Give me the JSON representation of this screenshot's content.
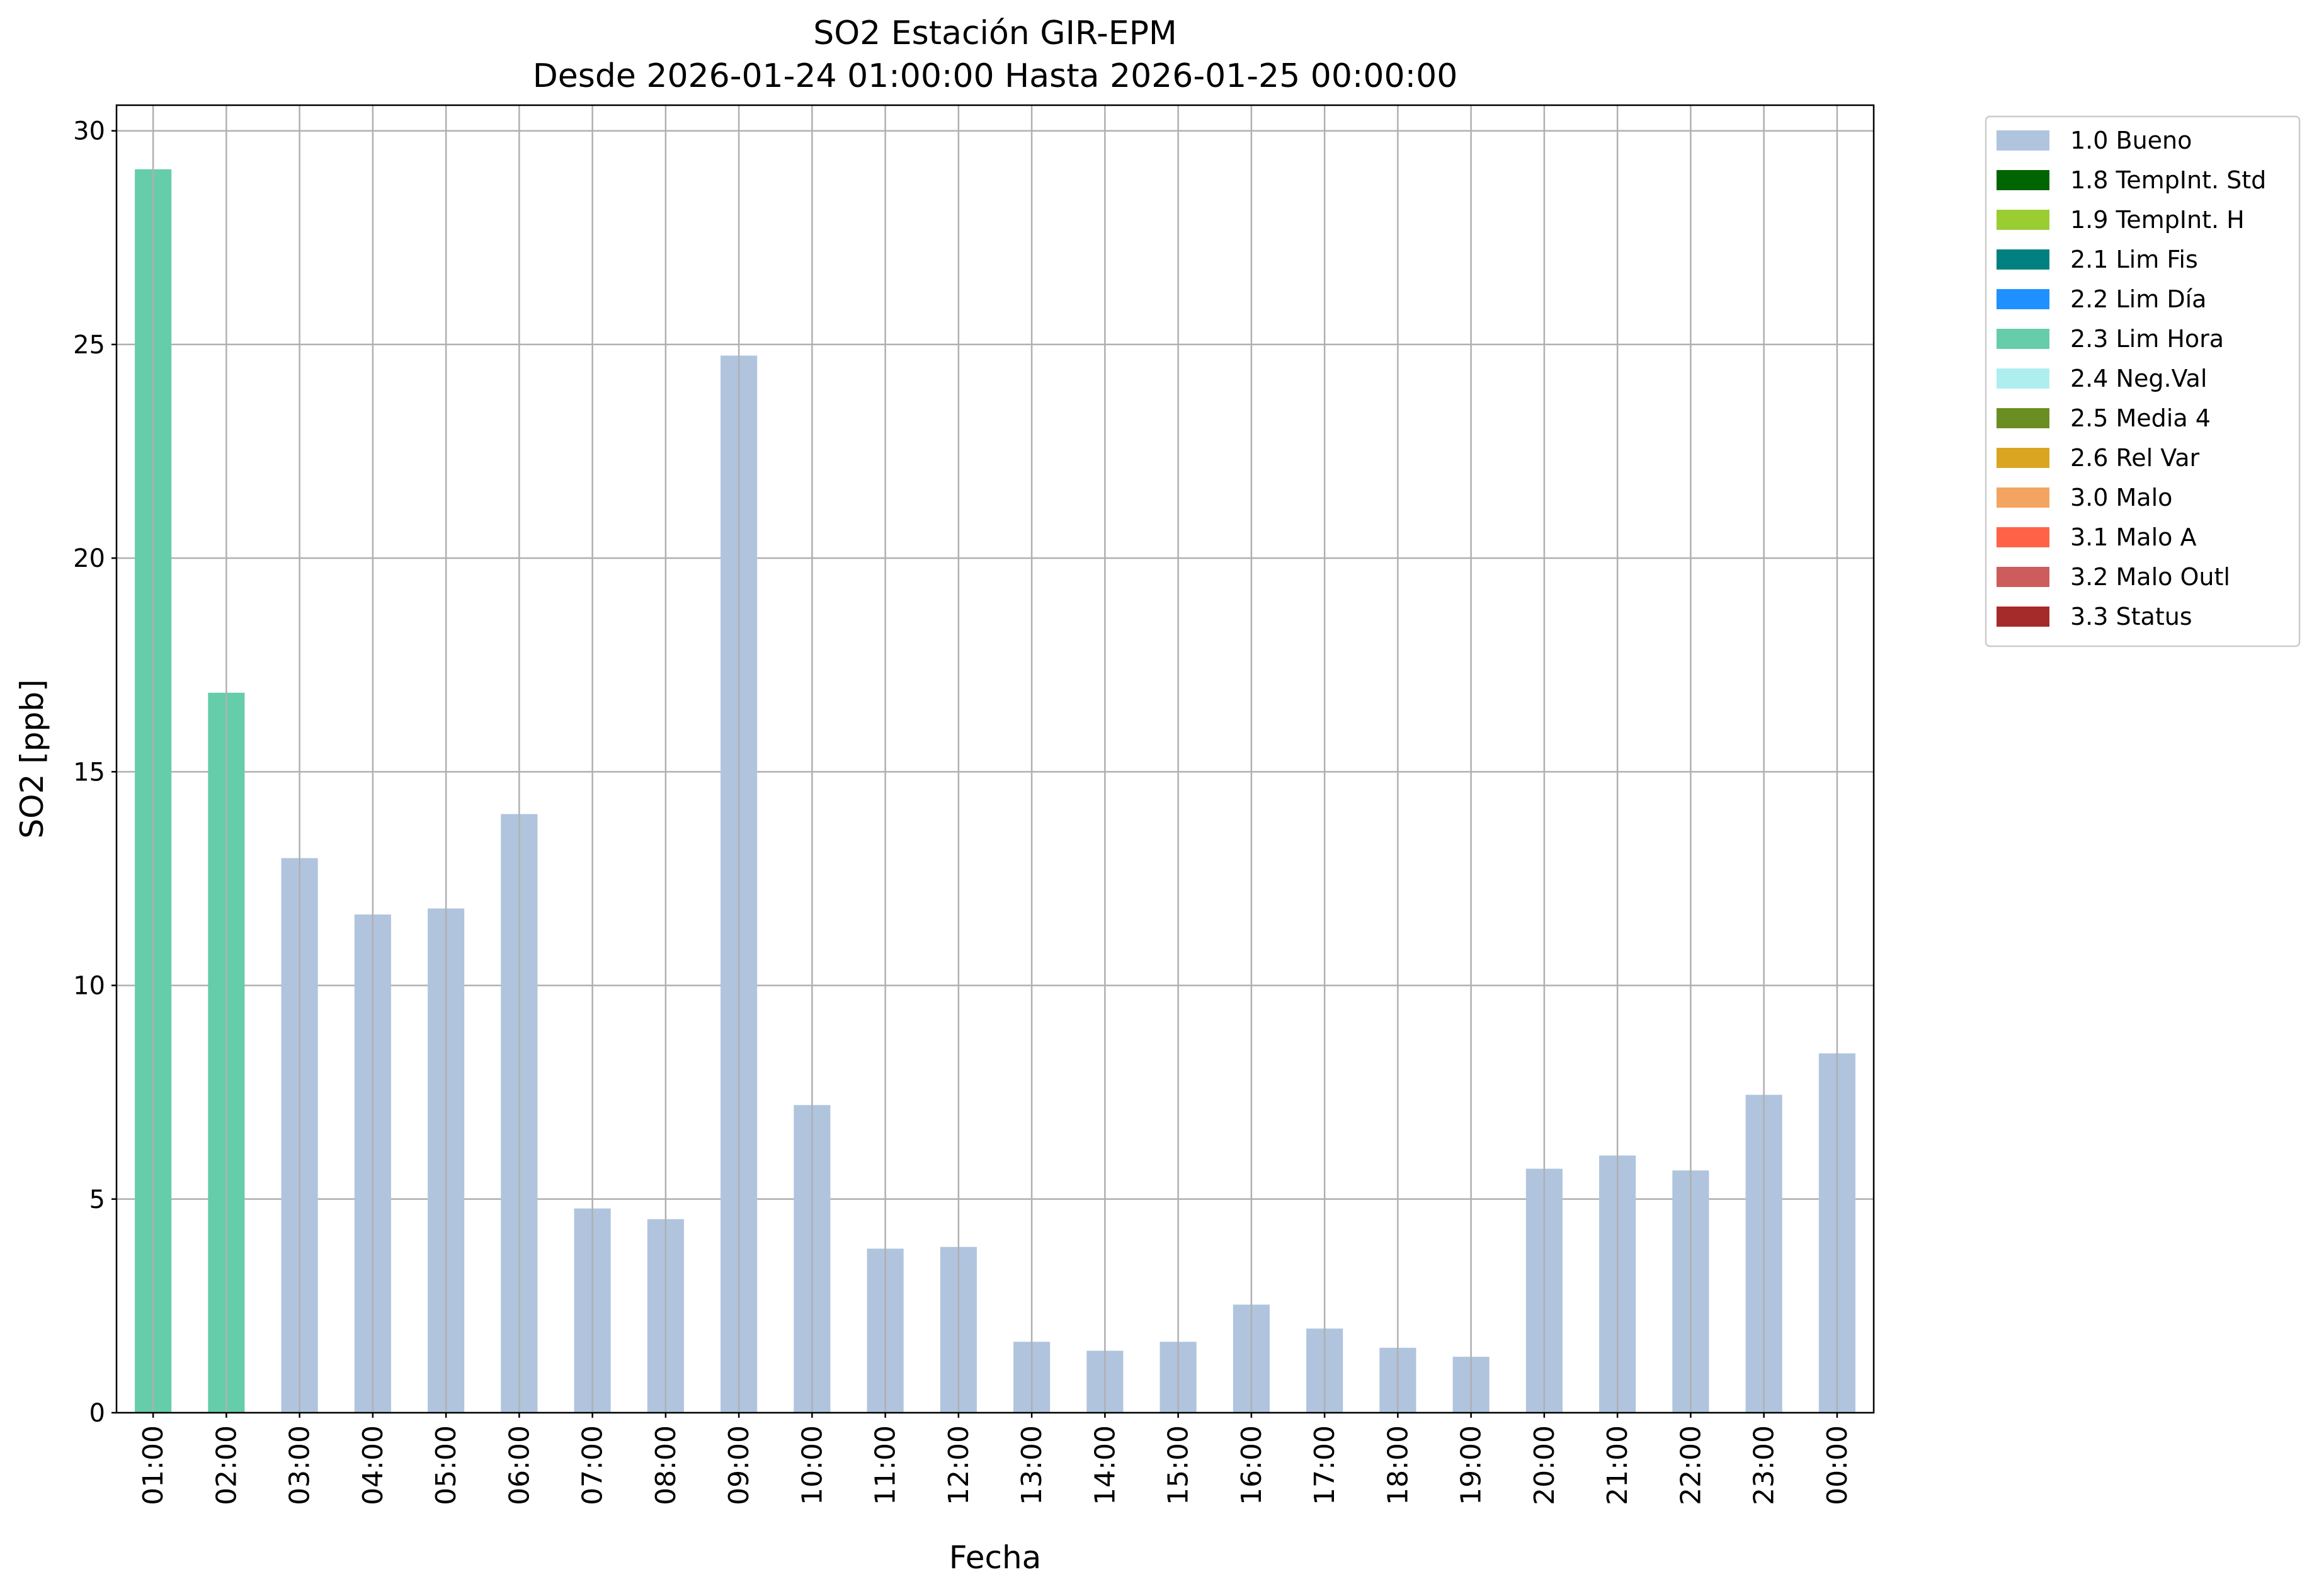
{
  "chart_data": {
    "type": "bar",
    "title": "SO2 Estación GIR-EPM",
    "subtitle": "Desde 2026-01-24 01:00:00 Hasta 2026-01-25 00:00:00",
    "xlabel": "Fecha",
    "ylabel": "SO2 [ppb]",
    "ylim": [
      0,
      30.6
    ],
    "yticks": [
      0,
      5,
      10,
      15,
      20,
      25,
      30
    ],
    "grid": true,
    "legend_placement": "outside-top-right",
    "categories": [
      "01:00",
      "02:00",
      "03:00",
      "04:00",
      "05:00",
      "06:00",
      "07:00",
      "08:00",
      "09:00",
      "10:00",
      "11:00",
      "12:00",
      "13:00",
      "14:00",
      "15:00",
      "16:00",
      "17:00",
      "18:00",
      "19:00",
      "20:00",
      "21:00",
      "22:00",
      "23:00",
      "00:00"
    ],
    "values": [
      29.1,
      16.85,
      12.98,
      11.66,
      11.8,
      14.01,
      4.78,
      4.53,
      24.74,
      7.2,
      3.84,
      3.88,
      1.66,
      1.45,
      1.66,
      2.53,
      1.97,
      1.52,
      1.31,
      5.71,
      6.02,
      5.67,
      7.44,
      8.41
    ],
    "flags": [
      "2.3 Lim Hora",
      "2.3 Lim Hora",
      "1.0 Bueno",
      "1.0 Bueno",
      "1.0 Bueno",
      "1.0 Bueno",
      "1.0 Bueno",
      "1.0 Bueno",
      "1.0 Bueno",
      "1.0 Bueno",
      "1.0 Bueno",
      "1.0 Bueno",
      "1.0 Bueno",
      "1.0 Bueno",
      "1.0 Bueno",
      "1.0 Bueno",
      "1.0 Bueno",
      "1.0 Bueno",
      "1.0 Bueno",
      "1.0 Bueno",
      "1.0 Bueno",
      "1.0 Bueno",
      "1.0 Bueno",
      "1.0 Bueno"
    ],
    "legend": [
      {
        "label": "1.0 Bueno",
        "color": "#b0c4de"
      },
      {
        "label": "1.8 TempInt. Std",
        "color": "#006400"
      },
      {
        "label": "1.9 TempInt. H",
        "color": "#9acd32"
      },
      {
        "label": "2.1 Lim Fis",
        "color": "#008080"
      },
      {
        "label": "2.2 Lim Día",
        "color": "#1e90ff"
      },
      {
        "label": "2.3 Lim Hora",
        "color": "#66cdaa"
      },
      {
        "label": "2.4 Neg.Val",
        "color": "#afeeee"
      },
      {
        "label": "2.5 Media 4",
        "color": "#6b8e23"
      },
      {
        "label": "2.6 Rel Var",
        "color": "#daa520"
      },
      {
        "label": "3.0 Malo",
        "color": "#f4a460"
      },
      {
        "label": "3.1 Malo A",
        "color": "#ff6347"
      },
      {
        "label": "3.2 Malo Outl",
        "color": "#cd5c5c"
      },
      {
        "label": "3.3 Status",
        "color": "#a52a2a"
      }
    ]
  }
}
